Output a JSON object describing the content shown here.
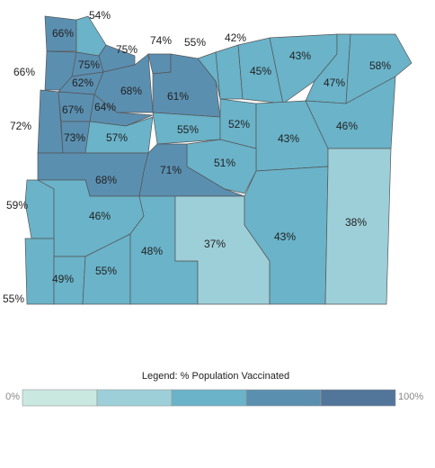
{
  "map": {
    "counties": [
      {
        "label": "66%",
        "color": "#5b8fb0"
      },
      {
        "label": "54%",
        "color": "#6ab3c9"
      },
      {
        "label": "75%",
        "color": "#5b8fb0"
      },
      {
        "label": "74%",
        "color": "#5b8fb0"
      },
      {
        "label": "55%",
        "color": "#6ab3c9"
      },
      {
        "label": "42%",
        "color": "#6ab3c9"
      },
      {
        "label": "66%",
        "color": "#5b8fb0"
      },
      {
        "label": "75%",
        "color": "#5b8fb0"
      },
      {
        "label": "62%",
        "color": "#5b8fb0"
      },
      {
        "label": "68%",
        "color": "#5b8fb0"
      },
      {
        "label": "61%",
        "color": "#5b8fb0"
      },
      {
        "label": "45%",
        "color": "#6ab3c9"
      },
      {
        "label": "43%",
        "color": "#6ab3c9"
      },
      {
        "label": "47%",
        "color": "#6ab3c9"
      },
      {
        "label": "58%",
        "color": "#6ab3c9"
      },
      {
        "label": "72%",
        "color": "#5b8fb0"
      },
      {
        "label": "67%",
        "color": "#5b8fb0"
      },
      {
        "label": "64%",
        "color": "#5b8fb0"
      },
      {
        "label": "73%",
        "color": "#5b8fb0"
      },
      {
        "label": "57%",
        "color": "#6ab3c9"
      },
      {
        "label": "55%",
        "color": "#6ab3c9"
      },
      {
        "label": "52%",
        "color": "#6ab3c9"
      },
      {
        "label": "43%",
        "color": "#6ab3c9"
      },
      {
        "label": "46%",
        "color": "#6ab3c9"
      },
      {
        "label": "51%",
        "color": "#6ab3c9"
      },
      {
        "label": "71%",
        "color": "#5b8fb0"
      },
      {
        "label": "68%",
        "color": "#5b8fb0"
      },
      {
        "label": "59%",
        "color": "#6ab3c9"
      },
      {
        "label": "46%",
        "color": "#6ab3c9"
      },
      {
        "label": "37%",
        "color": "#9dcfd8"
      },
      {
        "label": "43%",
        "color": "#6ab3c9"
      },
      {
        "label": "38%",
        "color": "#9dcfd8"
      },
      {
        "label": "48%",
        "color": "#6ab3c9"
      },
      {
        "label": "55%",
        "color": "#6ab3c9"
      },
      {
        "label": "49%",
        "color": "#6ab3c9"
      },
      {
        "label": "55%",
        "color": "#6ab3c9"
      }
    ]
  },
  "legend": {
    "title": "Legend: % Population Vaccinated",
    "min_label": "0%",
    "max_label": "100%",
    "colors": [
      "#c8e8e0",
      "#9dcfd8",
      "#6ab3c9",
      "#5b8fb0",
      "#52759a"
    ]
  }
}
